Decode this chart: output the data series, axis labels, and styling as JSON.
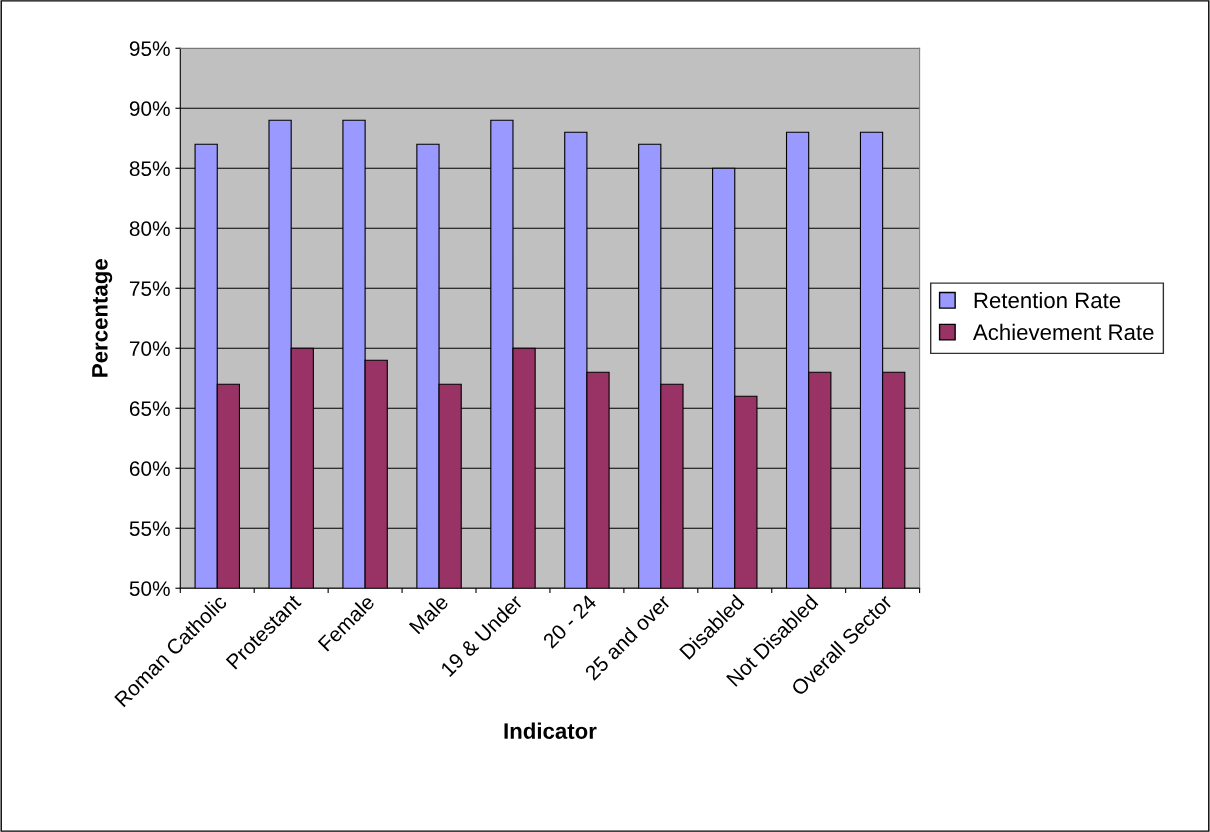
{
  "chart_data": {
    "type": "bar",
    "xlabel": "Indicator",
    "ylabel": "Percentage",
    "categories": [
      "Roman Catholic",
      "Protestant",
      "Female",
      "Male",
      "19 & Under",
      "20 - 24",
      "25 and over",
      "Disabled",
      "Not Disabled",
      "Overall Sector"
    ],
    "series": [
      {
        "name": "Retention Rate",
        "color": "#9999ff",
        "values": [
          87,
          89,
          89,
          87,
          89,
          88,
          87,
          85,
          88,
          88
        ]
      },
      {
        "name": "Achievement Rate",
        "color": "#993366",
        "values": [
          67,
          70,
          69,
          67,
          70,
          68,
          67,
          66,
          68,
          68
        ]
      }
    ],
    "ylim": [
      50,
      95
    ],
    "yticks": [
      {
        "value": 50,
        "label": "50%"
      },
      {
        "value": 55,
        "label": "55%"
      },
      {
        "value": 60,
        "label": "60%"
      },
      {
        "value": 65,
        "label": "65%"
      },
      {
        "value": 70,
        "label": "70%"
      },
      {
        "value": 75,
        "label": "75%"
      },
      {
        "value": 80,
        "label": "80%"
      },
      {
        "value": 85,
        "label": "85%"
      },
      {
        "value": 90,
        "label": "90%"
      },
      {
        "value": 95,
        "label": "95%"
      }
    ],
    "grid": "y",
    "legend": "right"
  }
}
